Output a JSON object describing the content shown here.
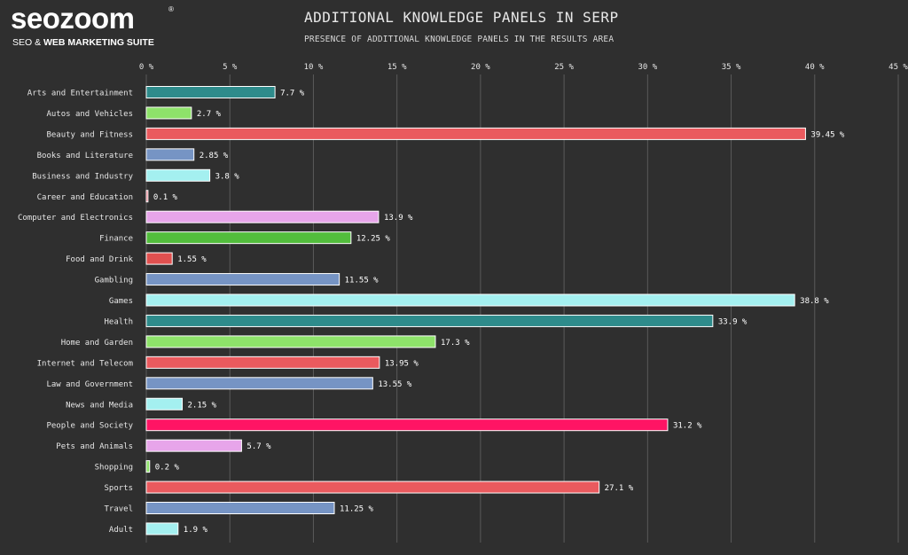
{
  "brand": {
    "name": "seozoom",
    "registered": "®",
    "tagline_plain": "SEO & ",
    "tagline_bold": "WEB MARKETING SUITE"
  },
  "chart_data": {
    "type": "bar",
    "orientation": "horizontal",
    "title": "ADDITIONAL KNOWLEDGE PANELS IN SERP",
    "subtitle": "PRESENCE OF ADDITIONAL KNOWLEDGE PANELS IN THE RESULTS AREA",
    "xlim": [
      0,
      45
    ],
    "xticks": [
      0,
      5,
      10,
      15,
      20,
      25,
      30,
      35,
      40,
      45
    ],
    "tick_suffix": " %",
    "grid": true,
    "categories": [
      "Arts and Entertainment",
      "Autos and Vehicles",
      "Beauty and Fitness",
      "Books and Literature",
      "Business and Industry",
      "Career and Education",
      "Computer and Electronics",
      "Finance",
      "Food and Drink",
      "Gambling",
      "Games",
      "Health",
      "Home and Garden",
      "Internet and Telecom",
      "Law and Government",
      "News and Media",
      "People and Society",
      "Pets and Animals",
      "Shopping",
      "Sports",
      "Travel",
      "Adult"
    ],
    "values": [
      7.7,
      2.7,
      39.45,
      2.85,
      3.8,
      0.1,
      13.9,
      12.25,
      1.55,
      11.55,
      38.8,
      33.9,
      17.3,
      13.95,
      13.55,
      2.15,
      31.2,
      5.7,
      0.2,
      27.1,
      11.25,
      1.9
    ],
    "value_labels": [
      "7.7 %",
      "2.7 %",
      "39.45 %",
      "2.85 %",
      "3.8 %",
      "0.1 %",
      "13.9 %",
      "12.25 %",
      "1.55 %",
      "11.55 %",
      "38.8 %",
      "33.9 %",
      "17.3 %",
      "13.95 %",
      "13.55 %",
      "2.15 %",
      "31.2 %",
      "5.7 %",
      "0.2 %",
      "27.1 %",
      "11.25 %",
      "1.9 %"
    ],
    "colors": [
      "#2e8b8b",
      "#8ee26a",
      "#ea5a5e",
      "#7694c4",
      "#a4f0f0",
      "#ea5a6e",
      "#e7a5ea",
      "#52bd3c",
      "#e0504f",
      "#7694c4",
      "#a4f0f0",
      "#2e8b8b",
      "#8ee26a",
      "#ea5a5e",
      "#7694c4",
      "#a4f0f0",
      "#ff1464",
      "#e7a5ea",
      "#8ee26a",
      "#ea5a5e",
      "#7694c4",
      "#a4f0f0"
    ]
  }
}
